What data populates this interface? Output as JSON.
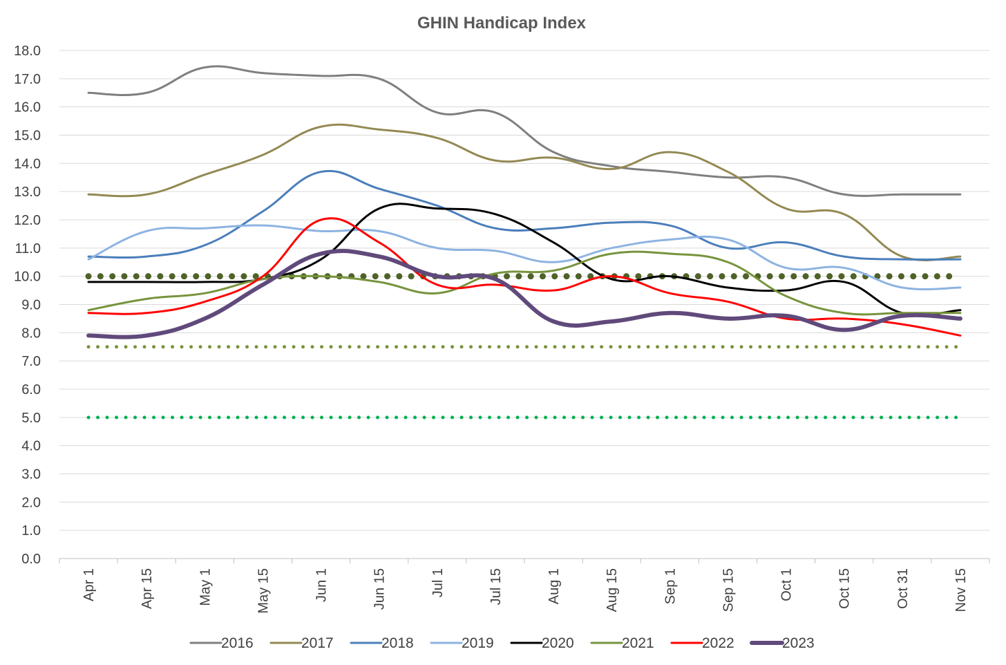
{
  "chart_data": {
    "type": "line",
    "title": "GHIN Handicap Index",
    "xlabel": "",
    "ylabel": "",
    "ylim": [
      0,
      18
    ],
    "ytick_step": 1,
    "yticks": [
      "0.0",
      "1.0",
      "2.0",
      "3.0",
      "4.0",
      "5.0",
      "6.0",
      "7.0",
      "8.0",
      "9.0",
      "10.0",
      "11.0",
      "12.0",
      "13.0",
      "14.0",
      "15.0",
      "16.0",
      "17.0",
      "18.0"
    ],
    "grid": "horizontal",
    "legend": "bottom",
    "categories": [
      "Apr 1",
      "Apr 15",
      "May 1",
      "May 15",
      "Jun 1",
      "Jun 15",
      "Jul 1",
      "Jul 15",
      "Aug 1",
      "Aug 15",
      "Sep 1",
      "Sep 15",
      "Oct 1",
      "Oct 15",
      "Oct 31",
      "Nov 15"
    ],
    "series": [
      {
        "name": "2016",
        "color": "#7f7f7f",
        "width": 3,
        "values": [
          16.5,
          16.5,
          17.4,
          17.2,
          17.1,
          17.0,
          15.8,
          15.8,
          14.4,
          13.9,
          13.7,
          13.5,
          13.5,
          12.9,
          12.9,
          12.9
        ]
      },
      {
        "name": "2017",
        "color": "#938953",
        "width": 3,
        "values": [
          12.9,
          12.9,
          13.6,
          14.3,
          15.3,
          15.2,
          14.9,
          14.1,
          14.2,
          13.8,
          14.4,
          13.7,
          12.4,
          12.2,
          10.7,
          10.7
        ]
      },
      {
        "name": "2018",
        "color": "#4a7ebb",
        "width": 3,
        "values": [
          10.7,
          10.7,
          11.1,
          12.3,
          13.7,
          13.1,
          12.5,
          11.7,
          11.7,
          11.9,
          11.8,
          11.0,
          11.2,
          10.7,
          10.6,
          10.6
        ]
      },
      {
        "name": "2019",
        "color": "#8db3e2",
        "width": 3,
        "values": [
          10.6,
          11.6,
          11.7,
          11.8,
          11.6,
          11.6,
          11.0,
          10.9,
          10.5,
          11.0,
          11.3,
          11.3,
          10.3,
          10.3,
          9.6,
          9.6
        ]
      },
      {
        "name": "2020",
        "color": "#000000",
        "width": 3,
        "values": [
          9.8,
          9.8,
          9.8,
          9.9,
          10.6,
          12.4,
          12.4,
          12.2,
          11.2,
          9.9,
          10.0,
          9.6,
          9.5,
          9.8,
          8.7,
          8.8
        ]
      },
      {
        "name": "2021",
        "color": "#77933c",
        "width": 3,
        "values": [
          8.8,
          9.2,
          9.4,
          9.9,
          10.0,
          9.8,
          9.4,
          10.1,
          10.2,
          10.8,
          10.8,
          10.5,
          9.3,
          8.7,
          8.7,
          8.7
        ]
      },
      {
        "name": "2022",
        "color": "#ff0000",
        "width": 3,
        "values": [
          8.7,
          8.7,
          9.1,
          10.0,
          12.0,
          11.2,
          9.7,
          9.7,
          9.5,
          10.0,
          9.4,
          9.1,
          8.5,
          8.5,
          8.3,
          7.9
        ]
      },
      {
        "name": "2023",
        "color": "#604a7b",
        "width": 6,
        "values": [
          7.9,
          7.9,
          8.5,
          9.7,
          10.8,
          10.7,
          10.0,
          9.9,
          8.4,
          8.4,
          8.7,
          8.5,
          8.6,
          8.1,
          8.6,
          8.5
        ]
      }
    ],
    "reference_lines": [
      {
        "value": 10.0,
        "color": "#4f6228",
        "style": "dotted-heavy"
      },
      {
        "value": 7.5,
        "color": "#77933c",
        "style": "dotted"
      },
      {
        "value": 5.0,
        "color": "#00b050",
        "style": "dotted"
      }
    ]
  }
}
